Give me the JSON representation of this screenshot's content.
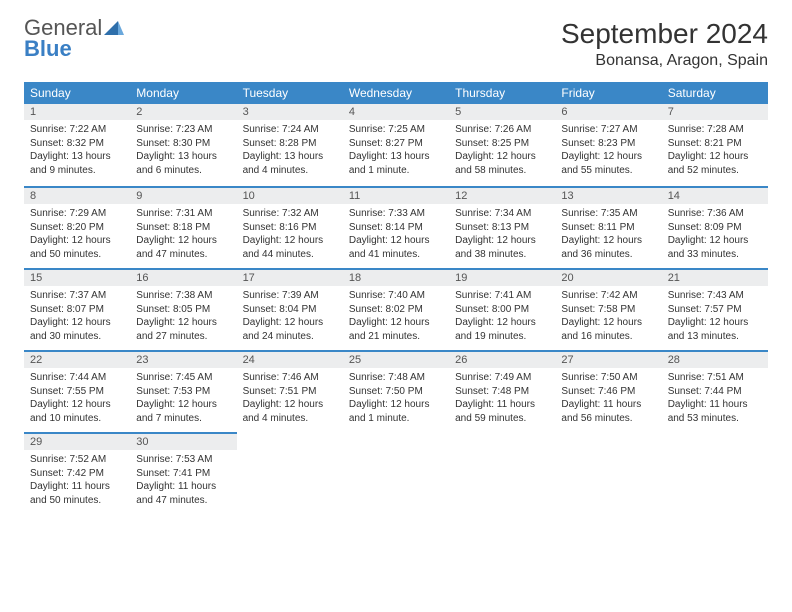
{
  "brand": {
    "part1": "General",
    "part2": "Blue"
  },
  "title": "September 2024",
  "location": "Bonansa, Aragon, Spain",
  "colors": {
    "header_bg": "#3a87c7",
    "daynum_bg": "#ecedee",
    "text": "#333333"
  },
  "dayNames": [
    "Sunday",
    "Monday",
    "Tuesday",
    "Wednesday",
    "Thursday",
    "Friday",
    "Saturday"
  ],
  "weeks": [
    [
      {
        "n": "1",
        "sr": "Sunrise: 7:22 AM",
        "ss": "Sunset: 8:32 PM",
        "dl": "Daylight: 13 hours and 9 minutes."
      },
      {
        "n": "2",
        "sr": "Sunrise: 7:23 AM",
        "ss": "Sunset: 8:30 PM",
        "dl": "Daylight: 13 hours and 6 minutes."
      },
      {
        "n": "3",
        "sr": "Sunrise: 7:24 AM",
        "ss": "Sunset: 8:28 PM",
        "dl": "Daylight: 13 hours and 4 minutes."
      },
      {
        "n": "4",
        "sr": "Sunrise: 7:25 AM",
        "ss": "Sunset: 8:27 PM",
        "dl": "Daylight: 13 hours and 1 minute."
      },
      {
        "n": "5",
        "sr": "Sunrise: 7:26 AM",
        "ss": "Sunset: 8:25 PM",
        "dl": "Daylight: 12 hours and 58 minutes."
      },
      {
        "n": "6",
        "sr": "Sunrise: 7:27 AM",
        "ss": "Sunset: 8:23 PM",
        "dl": "Daylight: 12 hours and 55 minutes."
      },
      {
        "n": "7",
        "sr": "Sunrise: 7:28 AM",
        "ss": "Sunset: 8:21 PM",
        "dl": "Daylight: 12 hours and 52 minutes."
      }
    ],
    [
      {
        "n": "8",
        "sr": "Sunrise: 7:29 AM",
        "ss": "Sunset: 8:20 PM",
        "dl": "Daylight: 12 hours and 50 minutes."
      },
      {
        "n": "9",
        "sr": "Sunrise: 7:31 AM",
        "ss": "Sunset: 8:18 PM",
        "dl": "Daylight: 12 hours and 47 minutes."
      },
      {
        "n": "10",
        "sr": "Sunrise: 7:32 AM",
        "ss": "Sunset: 8:16 PM",
        "dl": "Daylight: 12 hours and 44 minutes."
      },
      {
        "n": "11",
        "sr": "Sunrise: 7:33 AM",
        "ss": "Sunset: 8:14 PM",
        "dl": "Daylight: 12 hours and 41 minutes."
      },
      {
        "n": "12",
        "sr": "Sunrise: 7:34 AM",
        "ss": "Sunset: 8:13 PM",
        "dl": "Daylight: 12 hours and 38 minutes."
      },
      {
        "n": "13",
        "sr": "Sunrise: 7:35 AM",
        "ss": "Sunset: 8:11 PM",
        "dl": "Daylight: 12 hours and 36 minutes."
      },
      {
        "n": "14",
        "sr": "Sunrise: 7:36 AM",
        "ss": "Sunset: 8:09 PM",
        "dl": "Daylight: 12 hours and 33 minutes."
      }
    ],
    [
      {
        "n": "15",
        "sr": "Sunrise: 7:37 AM",
        "ss": "Sunset: 8:07 PM",
        "dl": "Daylight: 12 hours and 30 minutes."
      },
      {
        "n": "16",
        "sr": "Sunrise: 7:38 AM",
        "ss": "Sunset: 8:05 PM",
        "dl": "Daylight: 12 hours and 27 minutes."
      },
      {
        "n": "17",
        "sr": "Sunrise: 7:39 AM",
        "ss": "Sunset: 8:04 PM",
        "dl": "Daylight: 12 hours and 24 minutes."
      },
      {
        "n": "18",
        "sr": "Sunrise: 7:40 AM",
        "ss": "Sunset: 8:02 PM",
        "dl": "Daylight: 12 hours and 21 minutes."
      },
      {
        "n": "19",
        "sr": "Sunrise: 7:41 AM",
        "ss": "Sunset: 8:00 PM",
        "dl": "Daylight: 12 hours and 19 minutes."
      },
      {
        "n": "20",
        "sr": "Sunrise: 7:42 AM",
        "ss": "Sunset: 7:58 PM",
        "dl": "Daylight: 12 hours and 16 minutes."
      },
      {
        "n": "21",
        "sr": "Sunrise: 7:43 AM",
        "ss": "Sunset: 7:57 PM",
        "dl": "Daylight: 12 hours and 13 minutes."
      }
    ],
    [
      {
        "n": "22",
        "sr": "Sunrise: 7:44 AM",
        "ss": "Sunset: 7:55 PM",
        "dl": "Daylight: 12 hours and 10 minutes."
      },
      {
        "n": "23",
        "sr": "Sunrise: 7:45 AM",
        "ss": "Sunset: 7:53 PM",
        "dl": "Daylight: 12 hours and 7 minutes."
      },
      {
        "n": "24",
        "sr": "Sunrise: 7:46 AM",
        "ss": "Sunset: 7:51 PM",
        "dl": "Daylight: 12 hours and 4 minutes."
      },
      {
        "n": "25",
        "sr": "Sunrise: 7:48 AM",
        "ss": "Sunset: 7:50 PM",
        "dl": "Daylight: 12 hours and 1 minute."
      },
      {
        "n": "26",
        "sr": "Sunrise: 7:49 AM",
        "ss": "Sunset: 7:48 PM",
        "dl": "Daylight: 11 hours and 59 minutes."
      },
      {
        "n": "27",
        "sr": "Sunrise: 7:50 AM",
        "ss": "Sunset: 7:46 PM",
        "dl": "Daylight: 11 hours and 56 minutes."
      },
      {
        "n": "28",
        "sr": "Sunrise: 7:51 AM",
        "ss": "Sunset: 7:44 PM",
        "dl": "Daylight: 11 hours and 53 minutes."
      }
    ],
    [
      {
        "n": "29",
        "sr": "Sunrise: 7:52 AM",
        "ss": "Sunset: 7:42 PM",
        "dl": "Daylight: 11 hours and 50 minutes."
      },
      {
        "n": "30",
        "sr": "Sunrise: 7:53 AM",
        "ss": "Sunset: 7:41 PM",
        "dl": "Daylight: 11 hours and 47 minutes."
      },
      null,
      null,
      null,
      null,
      null
    ]
  ]
}
